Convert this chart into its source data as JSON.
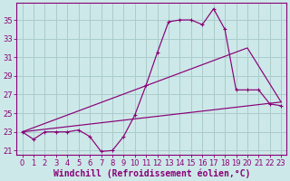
{
  "background_color": "#cde8e8",
  "line_color": "#880077",
  "grid_color": "#aacccc",
  "xlabel": "Windchill (Refroidissement éolien,°C)",
  "xlabel_fontsize": 7,
  "tick_fontsize": 6,
  "ylim": [
    20.5,
    36.8
  ],
  "xlim": [
    -0.5,
    23.5
  ],
  "yticks": [
    21,
    23,
    25,
    27,
    29,
    31,
    33,
    35
  ],
  "xticks": [
    0,
    1,
    2,
    3,
    4,
    5,
    6,
    7,
    8,
    9,
    10,
    11,
    12,
    13,
    14,
    15,
    16,
    17,
    18,
    19,
    20,
    21,
    22,
    23
  ],
  "line1_x": [
    0,
    1,
    2,
    3,
    4,
    5,
    6,
    7,
    8,
    9,
    10,
    11,
    12,
    13,
    14,
    15,
    16,
    17,
    18,
    19,
    20,
    21,
    22,
    23
  ],
  "line1_y": [
    23.0,
    22.2,
    23.0,
    23.0,
    23.0,
    23.2,
    22.5,
    20.9,
    21.0,
    22.5,
    24.8,
    28.0,
    31.5,
    34.8,
    35.0,
    35.0,
    34.5,
    36.2,
    34.0,
    27.5,
    27.5,
    27.5,
    26.0,
    25.8
  ],
  "line2_x": [
    0,
    20,
    23
  ],
  "line2_y": [
    23.0,
    32.0,
    26.2
  ],
  "line3_x": [
    0,
    23
  ],
  "line3_y": [
    23.0,
    26.2
  ]
}
